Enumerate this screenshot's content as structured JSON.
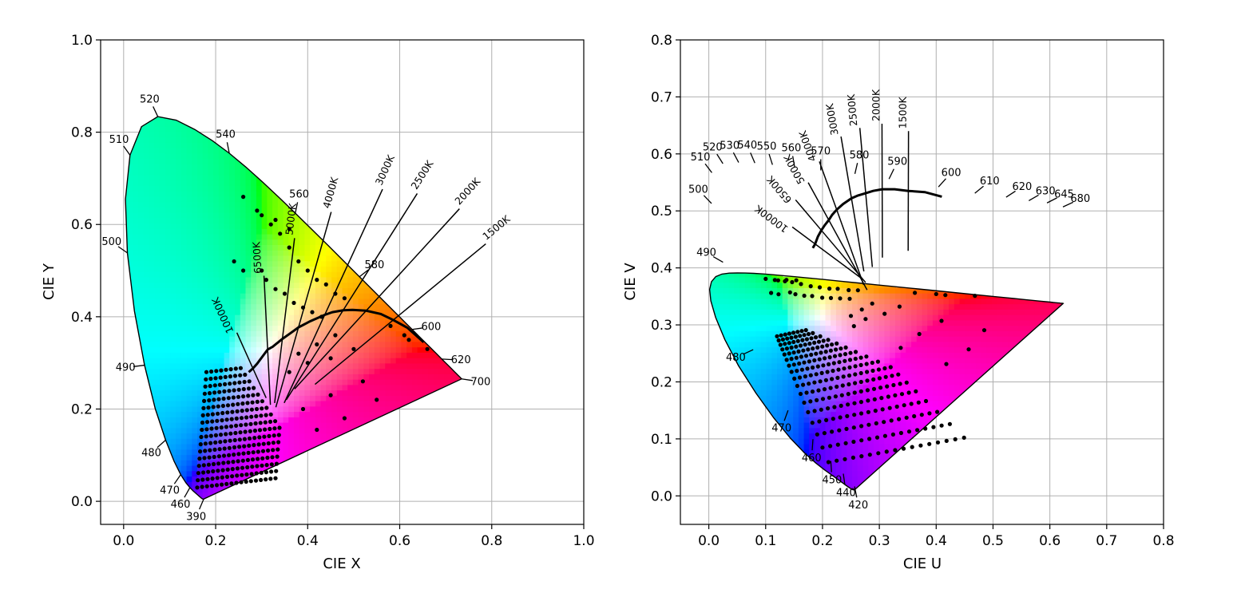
{
  "chart_data": [
    {
      "type": "scatter",
      "title": "",
      "xlabel": "CIE X",
      "ylabel": "CIE Y",
      "xlim": [
        -0.05,
        1.0
      ],
      "ylim": [
        -0.05,
        1.0
      ],
      "xticks": [
        "0.0",
        "0.2",
        "0.4",
        "0.6",
        "0.8",
        "1.0"
      ],
      "yticks": [
        "0.0",
        "0.2",
        "0.4",
        "0.6",
        "0.8",
        "1.0"
      ],
      "grid": true,
      "wavelength_labels": [
        {
          "label": "390",
          "x": 0.1741,
          "y": 0.005
        },
        {
          "label": "460",
          "x": 0.144,
          "y": 0.0297
        },
        {
          "label": "470",
          "x": 0.1241,
          "y": 0.0578
        },
        {
          "label": "480",
          "x": 0.0913,
          "y": 0.1327
        },
        {
          "label": "490",
          "x": 0.0454,
          "y": 0.295
        },
        {
          "label": "500",
          "x": 0.0082,
          "y": 0.5384
        },
        {
          "label": "510",
          "x": 0.0139,
          "y": 0.7502
        },
        {
          "label": "520",
          "x": 0.0743,
          "y": 0.8338
        },
        {
          "label": "540",
          "x": 0.2296,
          "y": 0.7543
        },
        {
          "label": "560",
          "x": 0.3731,
          "y": 0.6245
        },
        {
          "label": "580",
          "x": 0.5125,
          "y": 0.4866
        },
        {
          "label": "600",
          "x": 0.627,
          "y": 0.3725
        },
        {
          "label": "620",
          "x": 0.6915,
          "y": 0.3083
        },
        {
          "label": "700",
          "x": 0.7347,
          "y": 0.2653
        }
      ],
      "isotemperature_lines": [
        {
          "label": "1500K",
          "x": 0.586,
          "y": 0.393
        },
        {
          "label": "2000K",
          "x": 0.527,
          "y": 0.413
        },
        {
          "label": "2500K",
          "x": 0.477,
          "y": 0.414
        },
        {
          "label": "3000K",
          "x": 0.437,
          "y": 0.404
        },
        {
          "label": "4000K",
          "x": 0.38,
          "y": 0.377
        },
        {
          "label": "5000K",
          "x": 0.345,
          "y": 0.352
        },
        {
          "label": "6500K",
          "x": 0.313,
          "y": 0.329
        },
        {
          "label": "10000K",
          "x": 0.281,
          "y": 0.288
        }
      ],
      "planckian_locus": {
        "x": [
          0.652,
          0.617,
          0.586,
          0.559,
          0.527,
          0.497,
          0.477,
          0.454,
          0.437,
          0.405,
          0.38,
          0.362,
          0.345,
          0.324,
          0.313,
          0.29,
          0.281,
          0.272
        ],
        "y": [
          0.345,
          0.376,
          0.393,
          0.406,
          0.413,
          0.415,
          0.414,
          0.41,
          0.404,
          0.39,
          0.377,
          0.364,
          0.352,
          0.335,
          0.329,
          0.298,
          0.288,
          0.28
        ]
      }
    },
    {
      "type": "scatter",
      "title": "",
      "xlabel": "CIE U",
      "ylabel": "CIE V",
      "xlim": [
        -0.05,
        0.8
      ],
      "ylim": [
        -0.05,
        0.8
      ],
      "xticks": [
        "0.0",
        "0.1",
        "0.2",
        "0.3",
        "0.4",
        "0.5",
        "0.6",
        "0.7",
        "0.8"
      ],
      "yticks": [
        "0.0",
        "0.1",
        "0.2",
        "0.3",
        "0.4",
        "0.5",
        "0.6",
        "0.7",
        "0.8"
      ],
      "grid": true,
      "wavelength_labels": [
        {
          "label": "420",
          "x": 0.2564,
          "y": 0.0165
        },
        {
          "label": "440",
          "x": 0.2366,
          "y": 0.0389
        },
        {
          "label": "450",
          "x": 0.2146,
          "y": 0.0612
        },
        {
          "label": "460",
          "x": 0.1832,
          "y": 0.0995
        },
        {
          "label": "470",
          "x": 0.1394,
          "y": 0.1501
        },
        {
          "label": "480",
          "x": 0.0781,
          "y": 0.2566
        },
        {
          "label": "490",
          "x": 0.025,
          "y": 0.41
        },
        {
          "label": "500",
          "x": 0.0048,
          "y": 0.513
        },
        {
          "label": "510",
          "x": 0.0054,
          "y": 0.567
        },
        {
          "label": "520",
          "x": 0.0248,
          "y": 0.583
        },
        {
          "label": "530",
          "x": 0.0525,
          "y": 0.585
        },
        {
          "label": "540",
          "x": 0.081,
          "y": 0.584
        },
        {
          "label": "550",
          "x": 0.112,
          "y": 0.581
        },
        {
          "label": "560",
          "x": 0.151,
          "y": 0.577
        },
        {
          "label": "570",
          "x": 0.197,
          "y": 0.571
        },
        {
          "label": "580",
          "x": 0.257,
          "y": 0.565
        },
        {
          "label": "590",
          "x": 0.317,
          "y": 0.556
        },
        {
          "label": "600",
          "x": 0.404,
          "y": 0.542
        },
        {
          "label": "610",
          "x": 0.468,
          "y": 0.531
        },
        {
          "label": "620",
          "x": 0.523,
          "y": 0.524
        },
        {
          "label": "630",
          "x": 0.563,
          "y": 0.518
        },
        {
          "label": "645",
          "x": 0.595,
          "y": 0.514
        },
        {
          "label": "680",
          "x": 0.623,
          "y": 0.507
        }
      ],
      "isotemperature_lines": [
        {
          "label": "1500K",
          "x": 0.351,
          "y": 0.535
        },
        {
          "label": "2000K",
          "x": 0.305,
          "y": 0.538
        },
        {
          "label": "2500K",
          "x": 0.276,
          "y": 0.531
        },
        {
          "label": "3000K",
          "x": 0.251,
          "y": 0.522
        },
        {
          "label": "4000K",
          "x": 0.225,
          "y": 0.502
        },
        {
          "label": "5000K",
          "x": 0.211,
          "y": 0.484
        },
        {
          "label": "6500K",
          "x": 0.198,
          "y": 0.466
        },
        {
          "label": "10000K",
          "x": 0.187,
          "y": 0.442
        }
      ],
      "planckian_locus": {
        "x": [
          0.41,
          0.38,
          0.351,
          0.327,
          0.305,
          0.289,
          0.276,
          0.262,
          0.251,
          0.236,
          0.225,
          0.217,
          0.211,
          0.204,
          0.198,
          0.192,
          0.187,
          0.183
        ],
        "y": [
          0.525,
          0.533,
          0.535,
          0.538,
          0.538,
          0.535,
          0.531,
          0.527,
          0.522,
          0.512,
          0.502,
          0.493,
          0.484,
          0.475,
          0.466,
          0.455,
          0.442,
          0.435
        ]
      }
    }
  ]
}
